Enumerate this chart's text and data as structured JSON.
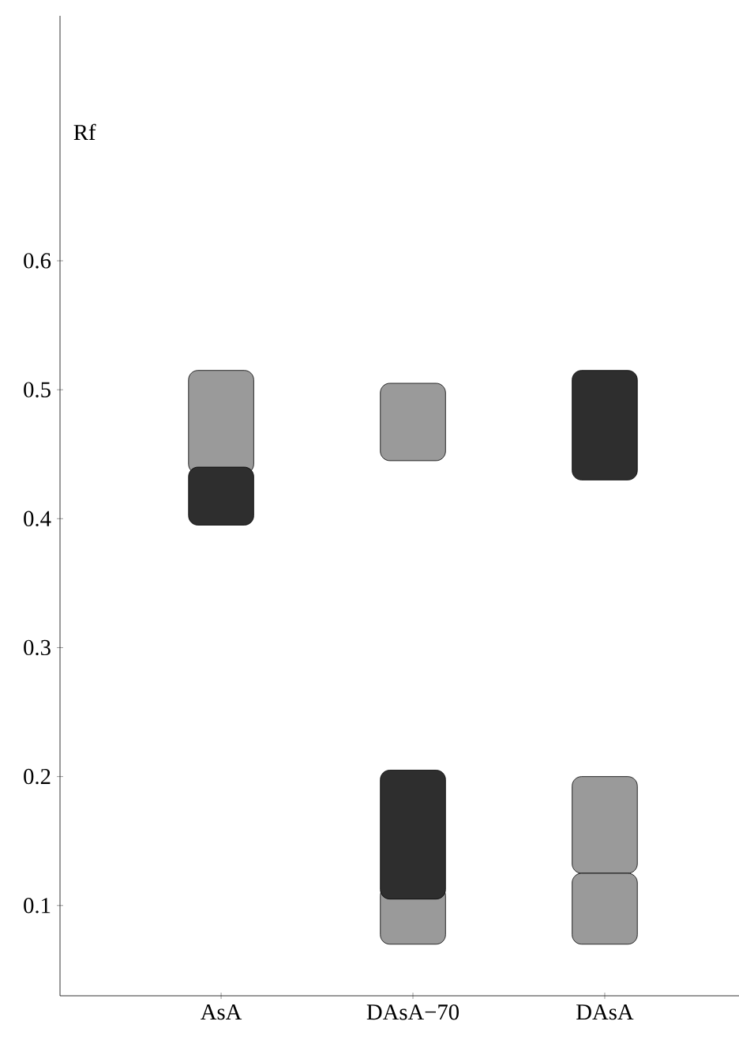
{
  "chart_data": {
    "type": "bar",
    "ylabel": "Rf",
    "categories": [
      "AsA",
      "DAsA−70",
      "DAsA"
    ],
    "series": [
      {
        "color": "#9a9a9a",
        "base": [
          0.435,
          0.445,
          0.125
        ],
        "values": [
          0.08,
          0.06,
          0.075
        ]
      },
      {
        "color": "#9a9a9a",
        "base": [
          null,
          0.07,
          0.07
        ],
        "values": [
          null,
          0.045,
          0.055
        ]
      },
      {
        "color": "#2e2e2e",
        "base": [
          0.395,
          0.105,
          0.43
        ],
        "values": [
          0.045,
          0.1,
          0.085
        ]
      }
    ],
    "ylim": [
      0.03,
      0.79
    ],
    "yticks": [
      0.1,
      0.2,
      0.3,
      0.4,
      0.5,
      0.6
    ]
  }
}
